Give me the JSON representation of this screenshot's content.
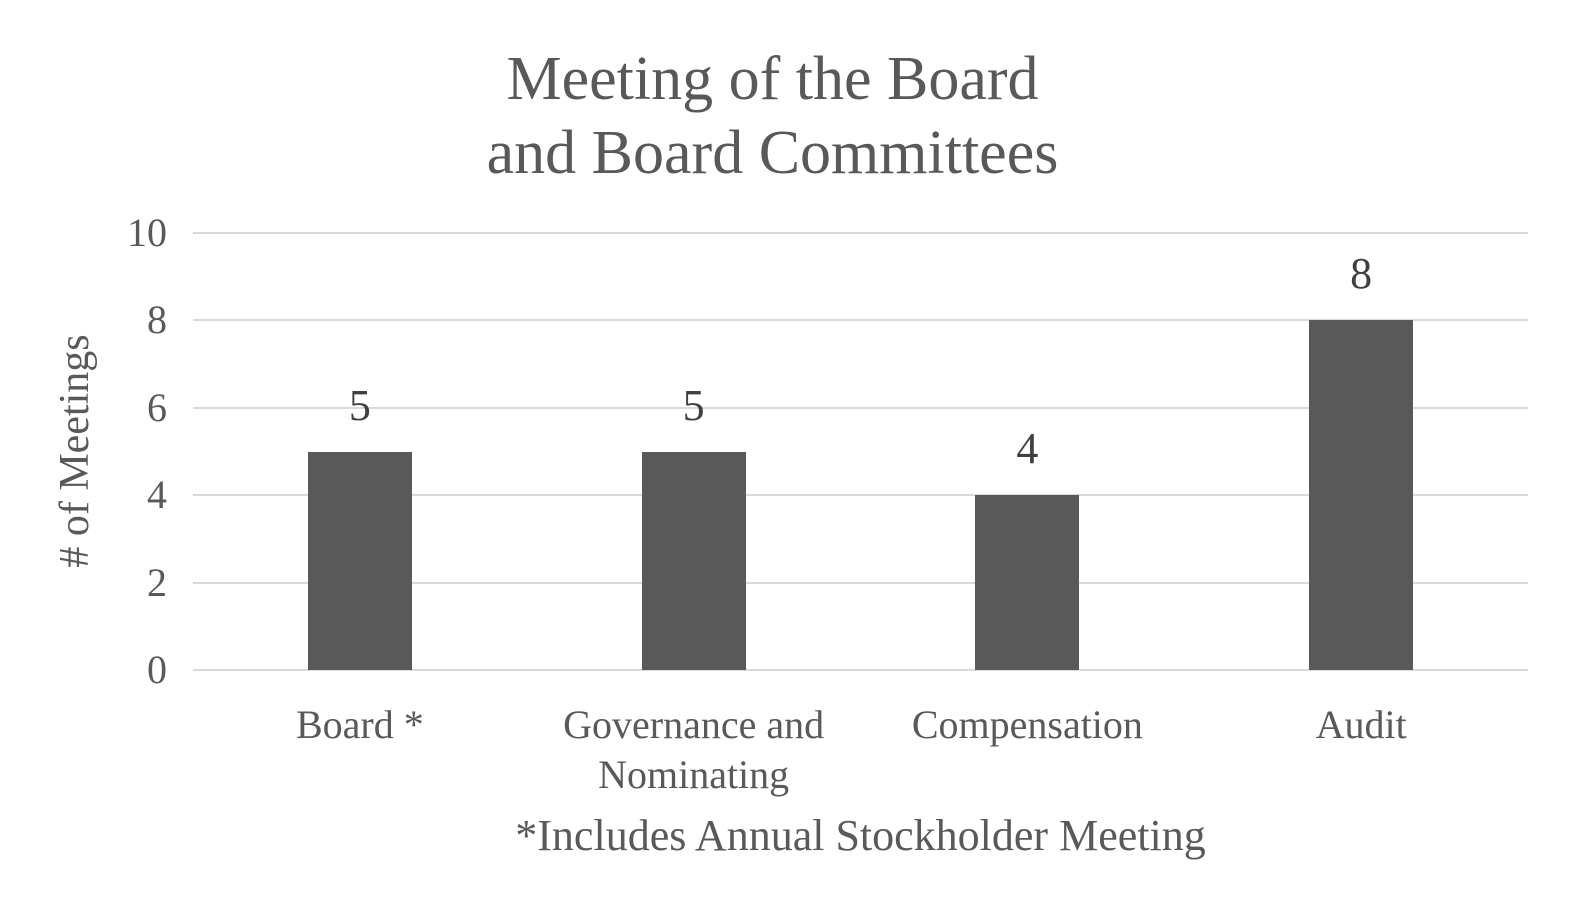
{
  "chart_data": {
    "type": "bar",
    "title": "Meeting of the Board and Board Committees",
    "title_lines": [
      "Meeting of the Board",
      "and Board Committees"
    ],
    "categories": [
      "Board *",
      "Governance and Nominating",
      "Compensation",
      "Audit"
    ],
    "values": [
      5,
      5,
      4,
      8
    ],
    "data_labels": [
      "5",
      "5",
      "4",
      "8"
    ],
    "xlabel": "",
    "ylabel": "# of Meetings",
    "ylim": [
      0,
      10
    ],
    "yticks": [
      0,
      2,
      4,
      6,
      8,
      10
    ],
    "grid": "horizontal-only",
    "legend": "none",
    "series_count": 1,
    "footnote": "*Includes Annual Stockholder Meeting",
    "colors": {
      "bar": "#595959",
      "gridline": "#DADADA",
      "text": "#595959",
      "data_label": "#404040",
      "background": "#FFFFFF"
    }
  }
}
